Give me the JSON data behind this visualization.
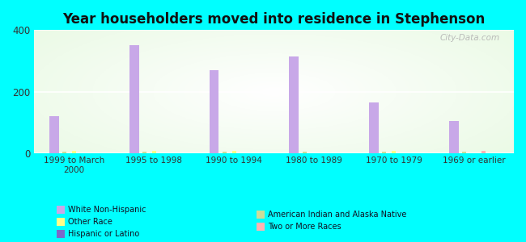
{
  "title": "Year householders moved into residence in Stephenson",
  "background_color": "#00FFFF",
  "categories": [
    "1999 to March\n2000",
    "1995 to 1998",
    "1990 to 1994",
    "1980 to 1989",
    "1970 to 1979",
    "1969 or earlier"
  ],
  "series": [
    {
      "name": "White Non-Hispanic",
      "color": "#C8A8E8",
      "values": [
        120,
        350,
        270,
        315,
        165,
        105
      ]
    },
    {
      "name": "American Indian and Alaska Native",
      "color": "#CCDD99",
      "values": [
        5,
        5,
        5,
        5,
        5,
        5
      ]
    },
    {
      "name": "Other Race",
      "color": "#FFFF88",
      "values": [
        8,
        8,
        8,
        0,
        8,
        0
      ]
    },
    {
      "name": "Two or More Races",
      "color": "#FFB3B3",
      "values": [
        0,
        0,
        0,
        0,
        0,
        8
      ]
    },
    {
      "name": "Hispanic or Latino",
      "color": "#7B68C8",
      "values": [
        0,
        0,
        0,
        0,
        0,
        0
      ]
    }
  ],
  "ylim": [
    0,
    400
  ],
  "yticks": [
    0,
    200,
    400
  ],
  "watermark": "City-Data.com",
  "legend_cols_left": [
    {
      "label": "White Non-Hispanic",
      "color": "#C8A8E8"
    },
    {
      "label": "Other Race",
      "color": "#FFFF88"
    },
    {
      "label": "Hispanic or Latino",
      "color": "#7B68C8"
    }
  ],
  "legend_cols_right": [
    {
      "label": "American Indian and Alaska Native",
      "color": "#CCDD99"
    },
    {
      "label": "Two or More Races",
      "color": "#FFB3B3"
    }
  ]
}
